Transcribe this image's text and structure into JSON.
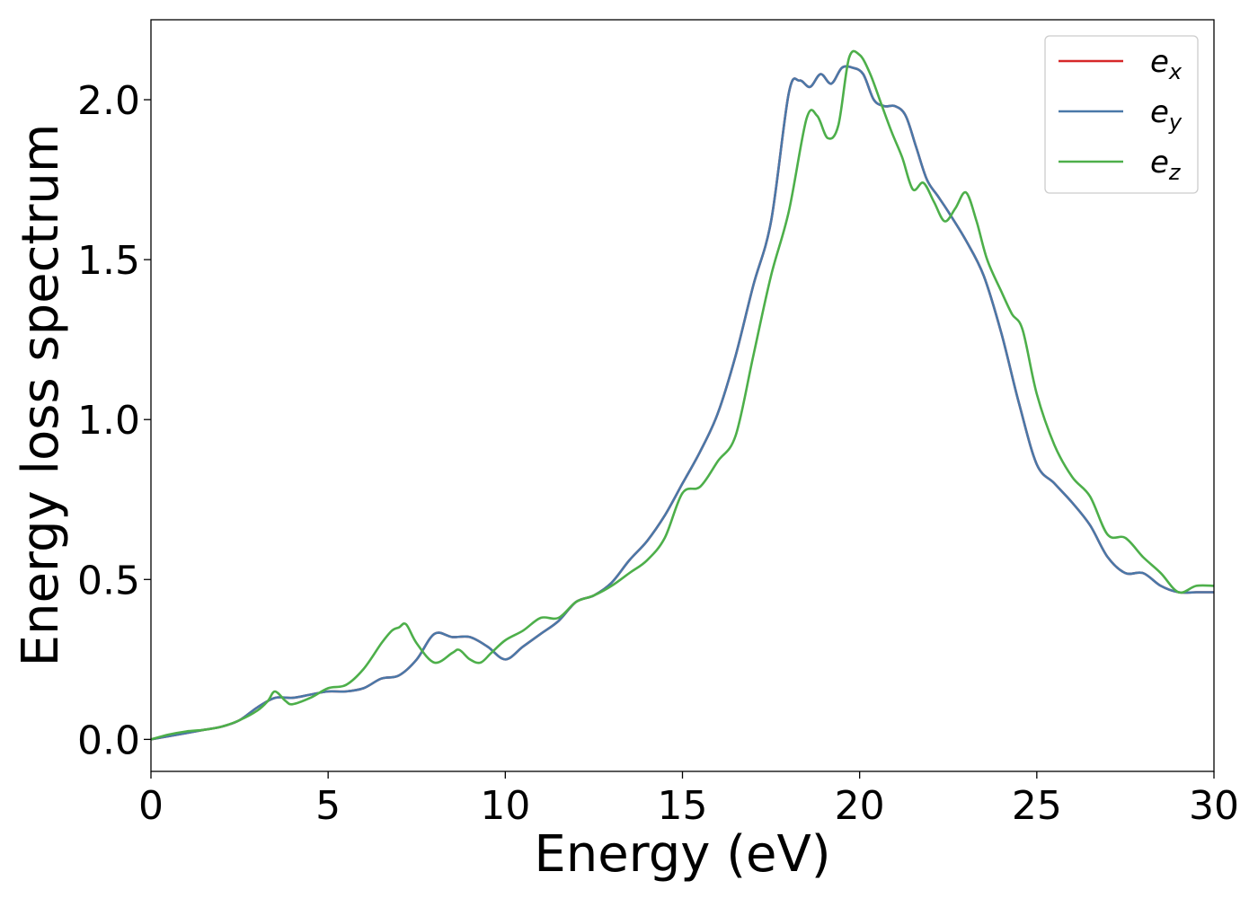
{
  "chart_data": {
    "type": "line",
    "xlabel": "Energy (eV)",
    "ylabel": "Energy loss spectrum",
    "xlim": [
      0,
      30
    ],
    "ylim": [
      -0.1,
      2.25
    ],
    "xticks": [
      0,
      5,
      10,
      15,
      20,
      25,
      30
    ],
    "xtick_labels": [
      "0",
      "5",
      "10",
      "15",
      "20",
      "25",
      "30"
    ],
    "yticks": [
      0.0,
      0.5,
      1.0,
      1.5,
      2.0
    ],
    "ytick_labels": [
      "0.0",
      "0.5",
      "1.0",
      "1.5",
      "2.0"
    ],
    "grid": false,
    "legend_position": "top-right",
    "series": [
      {
        "name": "e_x",
        "label_base": "e",
        "label_sub": "x",
        "color": "#d62728",
        "x": [
          0,
          0.5,
          1,
          1.5,
          2,
          2.5,
          3,
          3.5,
          4,
          4.5,
          5,
          5.5,
          6,
          6.5,
          7,
          7.5,
          8,
          8.5,
          9,
          9.5,
          10,
          10.5,
          11,
          11.5,
          12,
          12.5,
          13,
          13.5,
          14,
          14.5,
          15,
          15.5,
          16,
          16.5,
          17,
          17.5,
          18,
          18.3,
          18.6,
          18.9,
          19.2,
          19.5,
          19.8,
          20.1,
          20.4,
          20.7,
          21,
          21.3,
          21.6,
          21.9,
          22.2,
          22.5,
          23,
          23.5,
          24,
          24.5,
          25,
          25.5,
          26,
          26.5,
          27,
          27.5,
          28,
          28.5,
          29,
          29.5,
          30
        ],
        "y": [
          0,
          0.01,
          0.02,
          0.03,
          0.04,
          0.06,
          0.1,
          0.13,
          0.13,
          0.14,
          0.15,
          0.15,
          0.16,
          0.19,
          0.2,
          0.25,
          0.33,
          0.32,
          0.32,
          0.29,
          0.25,
          0.29,
          0.33,
          0.37,
          0.43,
          0.45,
          0.49,
          0.56,
          0.62,
          0.7,
          0.8,
          0.9,
          1.02,
          1.2,
          1.42,
          1.62,
          2.02,
          2.06,
          2.04,
          2.08,
          2.05,
          2.1,
          2.1,
          2.08,
          2.0,
          1.98,
          1.98,
          1.95,
          1.85,
          1.75,
          1.7,
          1.65,
          1.56,
          1.45,
          1.27,
          1.05,
          0.86,
          0.8,
          0.74,
          0.67,
          0.57,
          0.52,
          0.52,
          0.48,
          0.46,
          0.46,
          0.46
        ]
      },
      {
        "name": "e_y",
        "label_base": "e",
        "label_sub": "y",
        "color": "#4a78a8",
        "x": [
          0,
          0.5,
          1,
          1.5,
          2,
          2.5,
          3,
          3.5,
          4,
          4.5,
          5,
          5.5,
          6,
          6.5,
          7,
          7.5,
          8,
          8.5,
          9,
          9.5,
          10,
          10.5,
          11,
          11.5,
          12,
          12.5,
          13,
          13.5,
          14,
          14.5,
          15,
          15.5,
          16,
          16.5,
          17,
          17.5,
          18,
          18.3,
          18.6,
          18.9,
          19.2,
          19.5,
          19.8,
          20.1,
          20.4,
          20.7,
          21,
          21.3,
          21.6,
          21.9,
          22.2,
          22.5,
          23,
          23.5,
          24,
          24.5,
          25,
          25.5,
          26,
          26.5,
          27,
          27.5,
          28,
          28.5,
          29,
          29.5,
          30
        ],
        "y": [
          0,
          0.01,
          0.02,
          0.03,
          0.04,
          0.06,
          0.1,
          0.13,
          0.13,
          0.14,
          0.15,
          0.15,
          0.16,
          0.19,
          0.2,
          0.25,
          0.33,
          0.32,
          0.32,
          0.29,
          0.25,
          0.29,
          0.33,
          0.37,
          0.43,
          0.45,
          0.49,
          0.56,
          0.62,
          0.7,
          0.8,
          0.9,
          1.02,
          1.2,
          1.42,
          1.62,
          2.02,
          2.06,
          2.04,
          2.08,
          2.05,
          2.1,
          2.1,
          2.08,
          2.0,
          1.98,
          1.98,
          1.95,
          1.85,
          1.75,
          1.7,
          1.65,
          1.56,
          1.45,
          1.27,
          1.05,
          0.86,
          0.8,
          0.74,
          0.67,
          0.57,
          0.52,
          0.52,
          0.48,
          0.46,
          0.46,
          0.46
        ]
      },
      {
        "name": "e_z",
        "label_base": "e",
        "label_sub": "z",
        "color": "#4daf4a",
        "x": [
          0,
          0.5,
          1,
          1.5,
          2,
          2.5,
          3,
          3.3,
          3.5,
          3.8,
          4,
          4.5,
          5,
          5.5,
          6,
          6.5,
          6.8,
          7,
          7.2,
          7.5,
          8,
          8.5,
          8.7,
          9,
          9.3,
          9.6,
          10,
          10.5,
          11,
          11.5,
          12,
          12.5,
          13,
          13.5,
          14,
          14.5,
          15,
          15.5,
          16,
          16.5,
          17,
          17.5,
          18,
          18.5,
          18.8,
          19.1,
          19.4,
          19.7,
          20,
          20.3,
          20.6,
          20.9,
          21.2,
          21.5,
          21.8,
          22.1,
          22.4,
          22.7,
          23,
          23.3,
          23.6,
          24,
          24.3,
          24.6,
          25,
          25.5,
          26,
          26.5,
          27,
          27.5,
          28,
          28.5,
          29,
          29.5,
          30
        ],
        "y": [
          0,
          0.015,
          0.025,
          0.03,
          0.04,
          0.06,
          0.09,
          0.12,
          0.15,
          0.12,
          0.11,
          0.13,
          0.16,
          0.17,
          0.22,
          0.3,
          0.34,
          0.35,
          0.36,
          0.3,
          0.24,
          0.27,
          0.28,
          0.25,
          0.24,
          0.27,
          0.31,
          0.34,
          0.38,
          0.38,
          0.43,
          0.45,
          0.48,
          0.52,
          0.56,
          0.63,
          0.77,
          0.79,
          0.87,
          0.95,
          1.2,
          1.45,
          1.65,
          1.94,
          1.95,
          1.88,
          1.92,
          2.13,
          2.14,
          2.08,
          1.99,
          1.9,
          1.82,
          1.72,
          1.74,
          1.68,
          1.62,
          1.66,
          1.71,
          1.62,
          1.5,
          1.4,
          1.33,
          1.28,
          1.08,
          0.92,
          0.82,
          0.76,
          0.64,
          0.63,
          0.57,
          0.52,
          0.46,
          0.48,
          0.48
        ]
      }
    ]
  }
}
